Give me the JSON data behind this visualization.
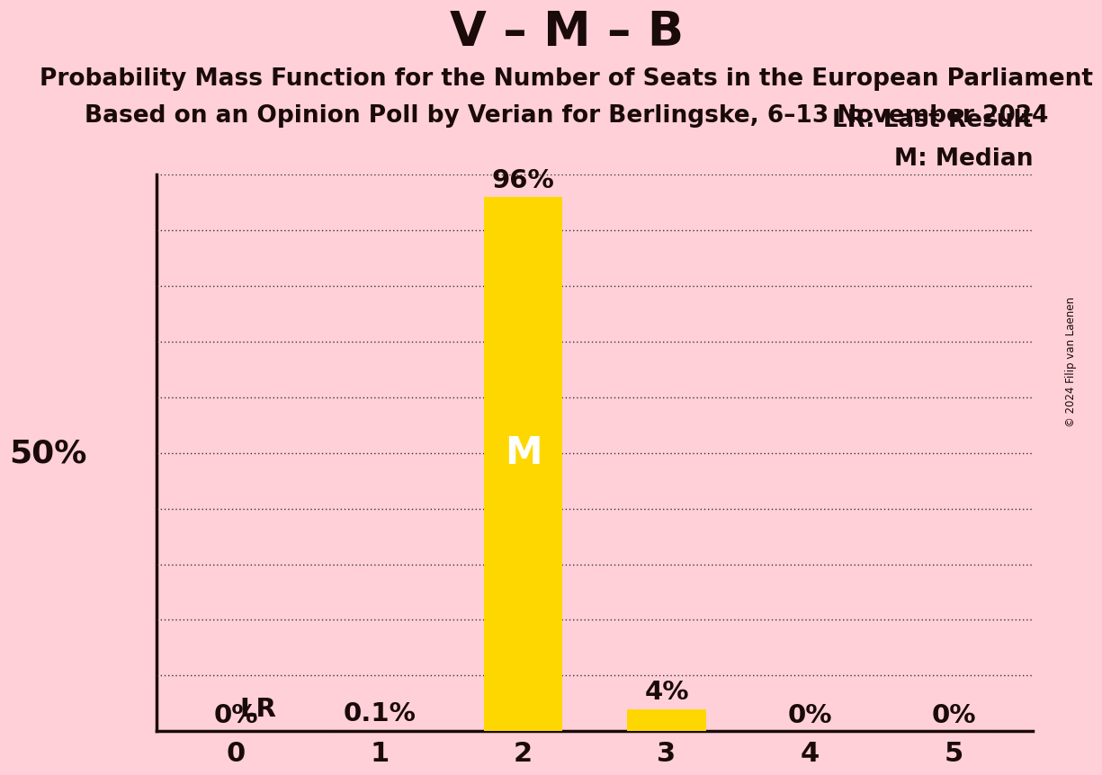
{
  "title": "V – M – B",
  "subtitle1": "Probability Mass Function for the Number of Seats in the European Parliament",
  "subtitle2": "Based on an Opinion Poll by Verian for Berlingske, 6–13 November 2024",
  "copyright": "© 2024 Filip van Laenen",
  "categories": [
    0,
    1,
    2,
    3,
    4,
    5
  ],
  "values": [
    0.0,
    0.001,
    0.96,
    0.04,
    0.0,
    0.0
  ],
  "bar_labels": [
    "0%",
    "0.1%",
    "96%",
    "4%",
    "0%",
    "0%"
  ],
  "bar_color": "#FFD700",
  "median_bar": 2,
  "last_result_bar": 1,
  "median_label": "M",
  "lr_label": "LR",
  "legend_lr": "LR: Last Result",
  "legend_m": "M: Median",
  "background_color": "#FFD0D8",
  "text_color": "#1a0a0a",
  "title_fontsize": 38,
  "subtitle_fontsize": 19,
  "bar_label_fontsize": 21,
  "tick_fontsize": 22,
  "legend_fontsize": 19,
  "fifty_pct_label": "50%",
  "fifty_pct_fontsize": 26,
  "median_label_fontsize": 30,
  "lr_label_fontsize": 21,
  "ylim": [
    0,
    1.0
  ],
  "yticks": [
    0.0,
    0.1,
    0.2,
    0.3,
    0.4,
    0.5,
    0.6,
    0.7,
    0.8,
    0.9,
    1.0
  ],
  "grid_color": "#333333",
  "bar_width": 0.55
}
